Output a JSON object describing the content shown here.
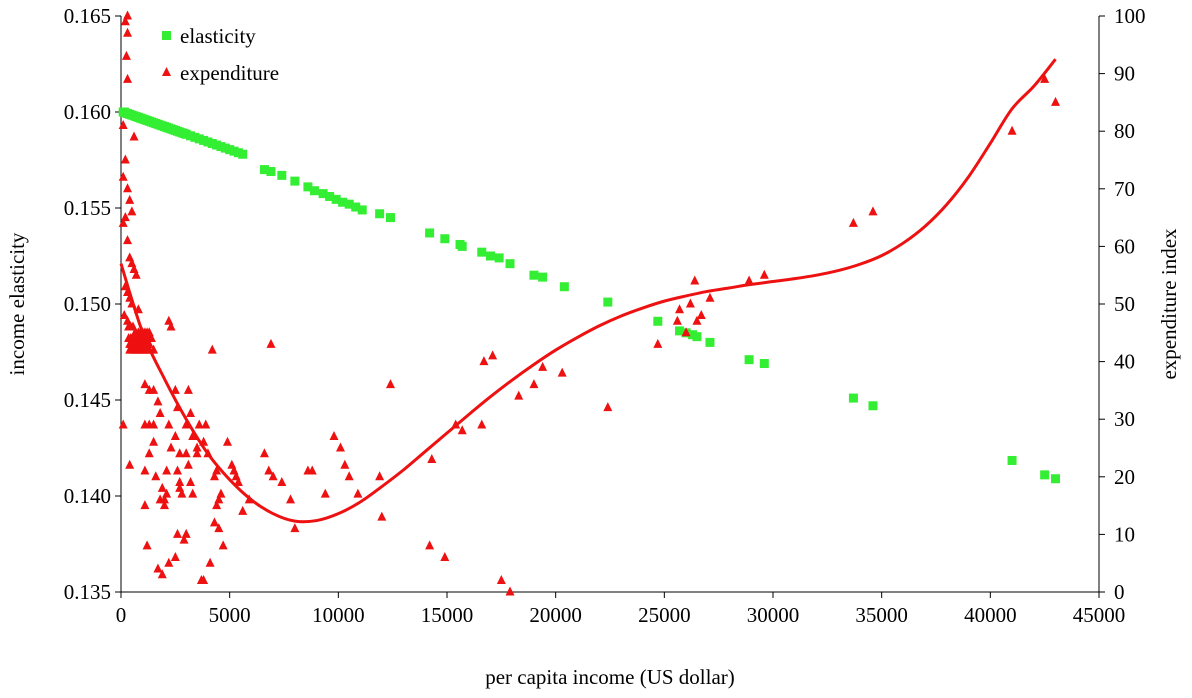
{
  "chart_data": {
    "type": "scatter",
    "xlabel": "per capita income (US dollar)",
    "ylabel_left": "income elasticity",
    "ylabel_right": "expenditure index",
    "xlim": [
      0,
      45000
    ],
    "ylim_left": [
      0.135,
      0.165
    ],
    "ylim_right": [
      0,
      100
    ],
    "x_ticks": [
      0,
      5000,
      10000,
      15000,
      20000,
      25000,
      30000,
      35000,
      40000,
      45000
    ],
    "y_left_ticks": [
      0.135,
      0.14,
      0.145,
      0.15,
      0.155,
      0.16,
      0.165
    ],
    "y_left_tick_labels": [
      "0.135",
      "0.140",
      "0.145",
      "0.150",
      "0.155",
      "0.160",
      "0.165"
    ],
    "y_right_ticks": [
      0,
      10,
      20,
      30,
      40,
      50,
      60,
      70,
      80,
      90,
      100
    ],
    "grid": false,
    "legend": {
      "position": "top-left"
    },
    "series": [
      {
        "name": "elasticity",
        "axis": "left",
        "marker": "square",
        "color": "#33ee33",
        "points": [
          [
            100,
            0.16
          ],
          [
            150,
            0.16
          ],
          [
            200,
            0.15995
          ],
          [
            300,
            0.15992
          ],
          [
            400,
            0.15988
          ],
          [
            500,
            0.15984
          ],
          [
            600,
            0.1598
          ],
          [
            700,
            0.15976
          ],
          [
            800,
            0.15972
          ],
          [
            900,
            0.15968
          ],
          [
            1000,
            0.15964
          ],
          [
            1100,
            0.1596
          ],
          [
            1200,
            0.15956
          ],
          [
            1300,
            0.15952
          ],
          [
            1400,
            0.15948
          ],
          [
            1500,
            0.15944
          ],
          [
            1600,
            0.1594
          ],
          [
            1700,
            0.15936
          ],
          [
            1800,
            0.15932
          ],
          [
            1900,
            0.15928
          ],
          [
            2000,
            0.15924
          ],
          [
            2100,
            0.1592
          ],
          [
            2200,
            0.15916
          ],
          [
            2300,
            0.15912
          ],
          [
            2400,
            0.15908
          ],
          [
            2500,
            0.15904
          ],
          [
            2600,
            0.159
          ],
          [
            2700,
            0.15896
          ],
          [
            2800,
            0.15892
          ],
          [
            2900,
            0.15888
          ],
          [
            3000,
            0.15884
          ],
          [
            3200,
            0.15876
          ],
          [
            3400,
            0.15868
          ],
          [
            3600,
            0.1586
          ],
          [
            3800,
            0.15852
          ],
          [
            4000,
            0.15844
          ],
          [
            4200,
            0.15836
          ],
          [
            4400,
            0.15828
          ],
          [
            4600,
            0.1582
          ],
          [
            4800,
            0.15812
          ],
          [
            5000,
            0.15804
          ],
          [
            5200,
            0.15796
          ],
          [
            5400,
            0.15788
          ],
          [
            5600,
            0.1578
          ],
          [
            6600,
            0.157
          ],
          [
            6900,
            0.1569
          ],
          [
            7400,
            0.1567
          ],
          [
            8000,
            0.1564
          ],
          [
            8600,
            0.1561
          ],
          [
            8900,
            0.1559
          ],
          [
            9300,
            0.15575
          ],
          [
            9600,
            0.1556
          ],
          [
            9900,
            0.15545
          ],
          [
            10200,
            0.1553
          ],
          [
            10500,
            0.1552
          ],
          [
            10800,
            0.15505
          ],
          [
            11100,
            0.1549
          ],
          [
            11900,
            0.1547
          ],
          [
            12400,
            0.1545
          ],
          [
            14200,
            0.1537
          ],
          [
            14900,
            0.1534
          ],
          [
            15600,
            0.1531
          ],
          [
            15700,
            0.153
          ],
          [
            16600,
            0.1527
          ],
          [
            17000,
            0.1525
          ],
          [
            17400,
            0.1524
          ],
          [
            17900,
            0.1521
          ],
          [
            19000,
            0.1515
          ],
          [
            19400,
            0.1514
          ],
          [
            20400,
            0.1509
          ],
          [
            22400,
            0.1501
          ],
          [
            24700,
            0.1491
          ],
          [
            25700,
            0.1486
          ],
          [
            26000,
            0.1485
          ],
          [
            26300,
            0.1484
          ],
          [
            26500,
            0.1483
          ],
          [
            27100,
            0.148
          ],
          [
            28900,
            0.1471
          ],
          [
            29600,
            0.1469
          ],
          [
            33700,
            0.1451
          ],
          [
            34600,
            0.1447
          ],
          [
            41000,
            0.14185
          ],
          [
            42500,
            0.1411
          ],
          [
            43000,
            0.1409
          ]
        ]
      },
      {
        "name": "expenditure",
        "axis": "right",
        "marker": "triangle",
        "color": "#ee1111",
        "points": [
          [
            300,
            100
          ],
          [
            200,
            99
          ],
          [
            300,
            97
          ],
          [
            250,
            93
          ],
          [
            300,
            89
          ],
          [
            100,
            81
          ],
          [
            600,
            79
          ],
          [
            200,
            75
          ],
          [
            100,
            72
          ],
          [
            300,
            70
          ],
          [
            400,
            68
          ],
          [
            500,
            66
          ],
          [
            200,
            65
          ],
          [
            100,
            64
          ],
          [
            300,
            61
          ],
          [
            400,
            58
          ],
          [
            500,
            57
          ],
          [
            600,
            56
          ],
          [
            700,
            55
          ],
          [
            200,
            53
          ],
          [
            300,
            52
          ],
          [
            400,
            51
          ],
          [
            500,
            50
          ],
          [
            800,
            49
          ],
          [
            150,
            48
          ],
          [
            300,
            47
          ],
          [
            350,
            46
          ],
          [
            450,
            46
          ],
          [
            550,
            46
          ],
          [
            650,
            45
          ],
          [
            800,
            45
          ],
          [
            900,
            45
          ],
          [
            1000,
            45
          ],
          [
            1100,
            45
          ],
          [
            1200,
            45
          ],
          [
            1300,
            45
          ],
          [
            350,
            44
          ],
          [
            450,
            44
          ],
          [
            600,
            44
          ],
          [
            700,
            44
          ],
          [
            800,
            44
          ],
          [
            900,
            44
          ],
          [
            1000,
            44
          ],
          [
            1100,
            44
          ],
          [
            1200,
            44
          ],
          [
            1300,
            44
          ],
          [
            1400,
            44
          ],
          [
            400,
            43
          ],
          [
            500,
            43
          ],
          [
            600,
            43
          ],
          [
            700,
            43
          ],
          [
            800,
            43
          ],
          [
            900,
            43
          ],
          [
            1000,
            43
          ],
          [
            1100,
            43
          ],
          [
            1200,
            43
          ],
          [
            1300,
            43
          ],
          [
            400,
            42
          ],
          [
            500,
            42
          ],
          [
            600,
            42
          ],
          [
            700,
            42
          ],
          [
            800,
            42
          ],
          [
            900,
            42
          ],
          [
            1000,
            42
          ],
          [
            1100,
            42
          ],
          [
            1200,
            42
          ],
          [
            1300,
            42
          ],
          [
            1500,
            42
          ],
          [
            100,
            29
          ],
          [
            400,
            22
          ],
          [
            1100,
            36
          ],
          [
            1300,
            35
          ],
          [
            1500,
            35
          ],
          [
            1100,
            29
          ],
          [
            1300,
            29
          ],
          [
            1500,
            29
          ],
          [
            1100,
            21
          ],
          [
            1300,
            24
          ],
          [
            1100,
            15
          ],
          [
            1500,
            26
          ],
          [
            1600,
            20
          ],
          [
            1700,
            33
          ],
          [
            1800,
            31
          ],
          [
            1900,
            18
          ],
          [
            1800,
            16
          ],
          [
            2000,
            16
          ],
          [
            2100,
            17
          ],
          [
            2000,
            15
          ],
          [
            2200,
            47
          ],
          [
            2300,
            46
          ],
          [
            2200,
            29
          ],
          [
            2100,
            21
          ],
          [
            2300,
            25
          ],
          [
            2500,
            35
          ],
          [
            2600,
            32
          ],
          [
            2700,
            24
          ],
          [
            2600,
            21
          ],
          [
            2500,
            27
          ],
          [
            2700,
            18
          ],
          [
            2600,
            10
          ],
          [
            2700,
            19
          ],
          [
            2800,
            17
          ],
          [
            3000,
            24
          ],
          [
            3200,
            31
          ],
          [
            3100,
            35
          ],
          [
            3000,
            29
          ],
          [
            3100,
            22
          ],
          [
            3200,
            19
          ],
          [
            3300,
            27
          ],
          [
            3500,
            25
          ],
          [
            3300,
            17
          ],
          [
            3600,
            29
          ],
          [
            3500,
            24
          ],
          [
            3800,
            26
          ],
          [
            3900,
            29
          ],
          [
            4000,
            24
          ],
          [
            4200,
            42
          ],
          [
            4300,
            20
          ],
          [
            4400,
            21
          ],
          [
            4500,
            16
          ],
          [
            4600,
            17
          ],
          [
            4500,
            11
          ],
          [
            4700,
            8
          ],
          [
            4900,
            26
          ],
          [
            5100,
            22
          ],
          [
            5200,
            21
          ],
          [
            5300,
            20
          ],
          [
            5400,
            19
          ],
          [
            5600,
            14
          ],
          [
            5900,
            16
          ],
          [
            3800,
            2
          ],
          [
            2200,
            5
          ],
          [
            2500,
            6
          ],
          [
            1200,
            8
          ],
          [
            1700,
            4
          ],
          [
            1900,
            3
          ],
          [
            2900,
            9
          ],
          [
            3000,
            10
          ],
          [
            3700,
            2
          ],
          [
            4100,
            5
          ],
          [
            4300,
            12
          ],
          [
            4400,
            15
          ],
          [
            6600,
            24
          ],
          [
            6800,
            21
          ],
          [
            7000,
            20
          ],
          [
            7400,
            19
          ],
          [
            7800,
            16
          ],
          [
            8600,
            21
          ],
          [
            8800,
            21
          ],
          [
            9400,
            17
          ],
          [
            9800,
            27
          ],
          [
            10100,
            25
          ],
          [
            10300,
            22
          ],
          [
            10500,
            20
          ],
          [
            10900,
            17
          ],
          [
            11900,
            20
          ],
          [
            12400,
            36
          ],
          [
            6900,
            43
          ],
          [
            8000,
            11
          ],
          [
            12000,
            13
          ],
          [
            14200,
            8
          ],
          [
            14300,
            23
          ],
          [
            14900,
            6
          ],
          [
            15400,
            29
          ],
          [
            15700,
            28
          ],
          [
            16600,
            29
          ],
          [
            16700,
            40
          ],
          [
            17100,
            41
          ],
          [
            17500,
            2
          ],
          [
            17900,
            0
          ],
          [
            18300,
            34
          ],
          [
            19000,
            36
          ],
          [
            19400,
            39
          ],
          [
            20300,
            38
          ],
          [
            22400,
            32
          ],
          [
            24700,
            43
          ],
          [
            25600,
            47
          ],
          [
            25700,
            49
          ],
          [
            26000,
            45
          ],
          [
            26200,
            50
          ],
          [
            26400,
            54
          ],
          [
            26500,
            47
          ],
          [
            26700,
            48
          ],
          [
            27100,
            51
          ],
          [
            28900,
            54
          ],
          [
            29600,
            55
          ],
          [
            33700,
            64
          ],
          [
            34600,
            66
          ],
          [
            41000,
            80
          ],
          [
            42500,
            89
          ],
          [
            43000,
            85
          ]
        ]
      }
    ],
    "trend": {
      "series": "expenditure",
      "points": [
        [
          0,
          57
        ],
        [
          1000,
          45
        ],
        [
          2000,
          37
        ],
        [
          3000,
          30
        ],
        [
          4000,
          24
        ],
        [
          5000,
          19.5
        ],
        [
          6000,
          16
        ],
        [
          7000,
          13.6
        ],
        [
          8000,
          12.3
        ],
        [
          9000,
          12.4
        ],
        [
          10000,
          13.6
        ],
        [
          11000,
          15.6
        ],
        [
          12000,
          18.3
        ],
        [
          13000,
          21.2
        ],
        [
          14000,
          24.4
        ],
        [
          15000,
          27.6
        ],
        [
          16000,
          30.8
        ],
        [
          17000,
          33.9
        ],
        [
          18000,
          36.8
        ],
        [
          19000,
          39.5
        ],
        [
          20000,
          42.0
        ],
        [
          21000,
          44.2
        ],
        [
          22000,
          46.2
        ],
        [
          23000,
          47.9
        ],
        [
          24000,
          49.3
        ],
        [
          25000,
          50.5
        ],
        [
          26000,
          51.4
        ],
        [
          27000,
          52.2
        ],
        [
          28000,
          52.8
        ],
        [
          29000,
          53.4
        ],
        [
          30000,
          53.9
        ],
        [
          31000,
          54.4
        ],
        [
          32000,
          55.0
        ],
        [
          33000,
          55.8
        ],
        [
          34000,
          56.9
        ],
        [
          35000,
          58.4
        ],
        [
          36000,
          60.6
        ],
        [
          37000,
          63.5
        ],
        [
          38000,
          67.3
        ],
        [
          39000,
          72.1
        ],
        [
          40000,
          77.9
        ],
        [
          41000,
          83.9
        ],
        [
          42000,
          87.8
        ],
        [
          43000,
          92.5
        ]
      ],
      "color": "#ee1111"
    }
  }
}
